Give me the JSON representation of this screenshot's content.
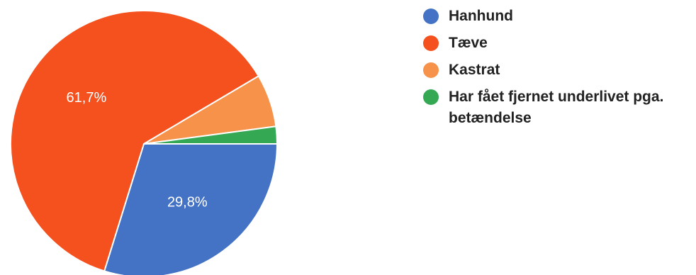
{
  "chart_data": {
    "type": "pie",
    "slices": [
      {
        "name": "Hanhund",
        "value": 29.8,
        "color": "#4472c4",
        "label": "29,8%"
      },
      {
        "name": "Tæve",
        "value": 61.7,
        "color": "#f4511e",
        "label": "61,7%"
      },
      {
        "name": "Kastrat",
        "value": 6.4,
        "color": "#f7924a",
        "label": ""
      },
      {
        "name": "Har fået fjernet underlivet pga. betændelse",
        "value": 2.1,
        "color": "#34a853",
        "label": ""
      }
    ],
    "legend_position": "right",
    "start": "east",
    "direction": "clockwise"
  },
  "legend": {
    "items": [
      {
        "label": "Hanhund",
        "color": "#4472c4"
      },
      {
        "label": "Tæve",
        "color": "#f4511e"
      },
      {
        "label": "Kastrat",
        "color": "#f7924a"
      },
      {
        "label": "Har fået fjernet underlivet pga. betændelse",
        "color": "#34a853"
      }
    ]
  }
}
